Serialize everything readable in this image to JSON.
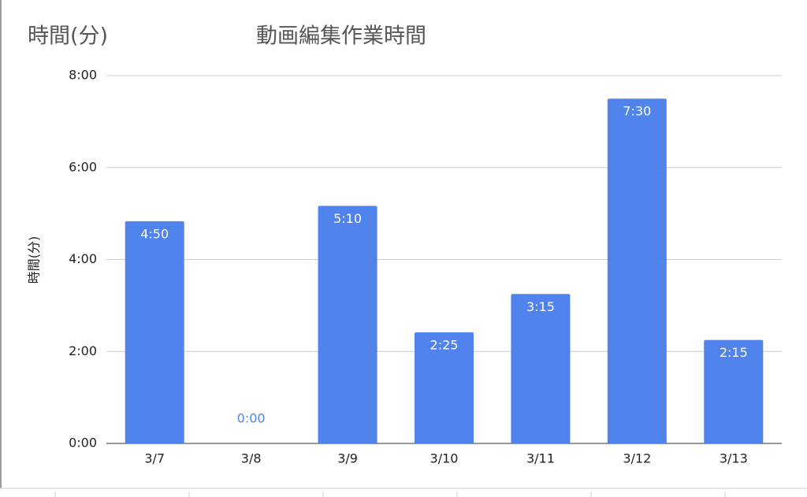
{
  "chart_data": {
    "type": "bar",
    "title": "動画編集作業時間",
    "header_label": "時間(分)",
    "y_label": "時間(分)",
    "categories": [
      "3/7",
      "3/8",
      "3/9",
      "3/10",
      "3/11",
      "3/12",
      "3/13"
    ],
    "values": [
      4.8333,
      0,
      5.1667,
      2.4167,
      3.25,
      7.5,
      2.25
    ],
    "value_labels": [
      "4:50",
      "0:00",
      "5:10",
      "2:25",
      "3:15",
      "7:30",
      "2:15"
    ],
    "color": "#5083ec",
    "ylim": [
      0,
      8
    ],
    "yticks": [
      {
        "value": 0,
        "label": "0:00"
      },
      {
        "value": 2,
        "label": "2:00"
      },
      {
        "value": 4,
        "label": "4:00"
      },
      {
        "value": 6,
        "label": "6:00"
      },
      {
        "value": 8,
        "label": "8:00"
      }
    ],
    "grid": true
  }
}
